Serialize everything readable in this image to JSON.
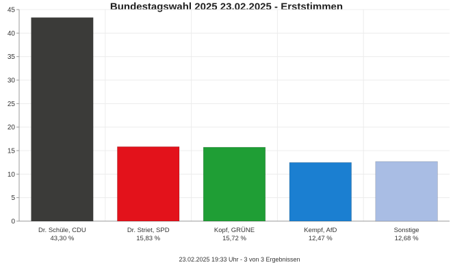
{
  "chart_data": {
    "type": "bar",
    "title": "Bundestagswahl 2025 23.02.2025 - Erststimmen",
    "categories": [
      "Dr. Schüle, CDU",
      "Dr. Striet, SPD",
      "Kopf, GRÜNE",
      "Kempf, AfD",
      "Sonstige"
    ],
    "percent_labels": [
      "43,30 %",
      "15,83 %",
      "15,72 %",
      "12,47 %",
      "12,68 %"
    ],
    "values": [
      43.3,
      15.83,
      15.72,
      12.47,
      12.68
    ],
    "colors": [
      "#3b3b39",
      "#e3121b",
      "#1f9e35",
      "#1b7fd1",
      "#a9bde4"
    ],
    "ylim": [
      0,
      45
    ],
    "yticks": [
      0,
      5,
      10,
      15,
      20,
      25,
      30,
      35,
      40,
      45
    ],
    "grid": true,
    "xlabel": "",
    "ylabel": ""
  },
  "footer": "23.02.2025 19:33 Uhr - 3 von 3 Ergebnissen"
}
